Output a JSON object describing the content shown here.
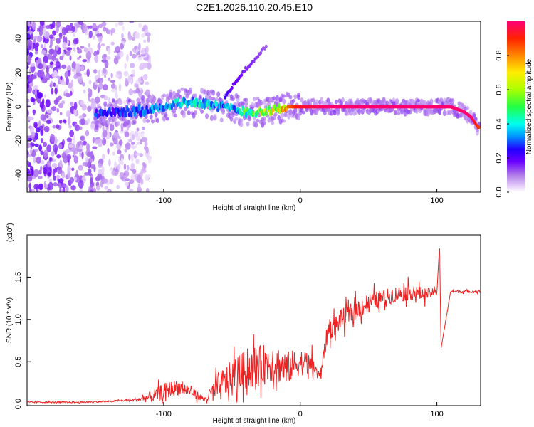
{
  "title": "C2E1.2026.110.20.45.E10",
  "chart_data": [
    {
      "type": "heatmap",
      "xlabel": "Height of straight line (km)",
      "ylabel": "Frequency (Hz)",
      "xlim": [
        -200,
        132
      ],
      "ylim": [
        -50,
        50
      ],
      "x_ticks": [
        {
          "value": -100,
          "label": "-100"
        },
        {
          "value": 0,
          "label": "0"
        },
        {
          "value": 100,
          "label": "100"
        }
      ],
      "y_ticks": [
        {
          "value": -40,
          "label": "-40"
        },
        {
          "value": -20,
          "label": "-20"
        },
        {
          "value": 0,
          "label": "0"
        },
        {
          "value": 20,
          "label": "20"
        },
        {
          "value": 40,
          "label": "40"
        }
      ],
      "ridge": {
        "description": "Frequency of spectral peak vs height",
        "x": [
          -145,
          -130,
          -120,
          -110,
          -100,
          -90,
          -80,
          -70,
          -60,
          -50,
          -40,
          -30,
          -20,
          -10,
          0,
          20,
          40,
          60,
          80,
          100,
          110,
          120,
          125,
          130
        ],
        "frequency": [
          -4,
          -3,
          -2.5,
          -2,
          0,
          2,
          3,
          2,
          0,
          -1,
          -3,
          -3,
          -2,
          0,
          0,
          0,
          0,
          0,
          0,
          0,
          0,
          -3,
          -6,
          -12
        ],
        "amplitude": [
          0.3,
          0.3,
          0.35,
          0.4,
          0.45,
          0.45,
          0.45,
          0.45,
          0.4,
          0.4,
          0.55,
          0.65,
          0.75,
          0.85,
          0.95,
          1,
          1,
          1,
          1,
          1,
          1,
          1,
          1,
          0.9
        ]
      },
      "branch": {
        "description": "Upward-sloping secondary branch",
        "x": [
          -55,
          -50,
          -45,
          -40,
          -35,
          -30,
          -25
        ],
        "frequency": [
          5,
          12,
          17,
          22,
          26,
          31,
          35
        ],
        "amplitude": [
          0.2,
          0.15,
          0.15,
          0.12,
          0.12,
          0.1,
          0.08
        ]
      },
      "noise_region": {
        "x_from": -200,
        "x_to": -120,
        "frequency_from": -50,
        "frequency_to": 50,
        "amplitude": 0.2
      }
    },
    {
      "type": "colorbar",
      "label": "Normalized spectral amplitude",
      "range": [
        0,
        1
      ],
      "ticks": [
        {
          "value": 0.0,
          "label": "0.0"
        },
        {
          "value": 0.2,
          "label": "0.2"
        },
        {
          "value": 0.4,
          "label": "0.4"
        },
        {
          "value": 0.6,
          "label": "0.6"
        },
        {
          "value": 0.8,
          "label": "0.8"
        }
      ]
    },
    {
      "type": "line",
      "xlabel": "Height of straight line (km)",
      "ylabel": "SNR (10 * v/v)",
      "scale_label_prefix": "(x10",
      "scale_label_exponent": "4",
      "scale_label_suffix": ")",
      "xlim": [
        -200,
        132
      ],
      "ylim": [
        -0.02,
        2.0
      ],
      "x_ticks": [
        {
          "value": -100,
          "label": "-100"
        },
        {
          "value": 0,
          "label": "0"
        },
        {
          "value": 100,
          "label": "100"
        }
      ],
      "y_ticks": [
        {
          "value": 0.0,
          "label": "0.0"
        },
        {
          "value": 0.5,
          "label": "0.5"
        },
        {
          "value": 1.0,
          "label": "1.0"
        },
        {
          "value": 1.5,
          "label": "1.5"
        }
      ],
      "series": [
        {
          "name": "SNR",
          "color": "#ee2222",
          "x": [
            -200,
            -180,
            -160,
            -140,
            -120,
            -110,
            -100,
            -90,
            -80,
            -70,
            -60,
            -50,
            -40,
            -30,
            -20,
            -10,
            0,
            10,
            14,
            20,
            30,
            40,
            50,
            60,
            70,
            80,
            90,
            100,
            102,
            103,
            110,
            120,
            132
          ],
          "values": [
            0.02,
            0.02,
            0.02,
            0.03,
            0.05,
            0.08,
            0.15,
            0.2,
            0.15,
            0.05,
            0.2,
            0.3,
            0.4,
            0.45,
            0.5,
            0.42,
            0.5,
            0.45,
            0.3,
            0.85,
            1.0,
            1.1,
            1.2,
            1.25,
            1.3,
            1.32,
            1.3,
            1.32,
            1.9,
            0.65,
            1.33,
            1.33,
            1.33
          ],
          "noise_amplitude": [
            0.01,
            0.01,
            0.01,
            0.01,
            0.02,
            0.08,
            0.12,
            0.12,
            0.08,
            0.04,
            0.22,
            0.28,
            0.3,
            0.3,
            0.3,
            0.25,
            0.2,
            0.15,
            0.1,
            0.15,
            0.15,
            0.15,
            0.15,
            0.12,
            0.12,
            0.12,
            0.1,
            0.05,
            0,
            0,
            0.02,
            0.02,
            0.02
          ]
        }
      ]
    }
  ]
}
